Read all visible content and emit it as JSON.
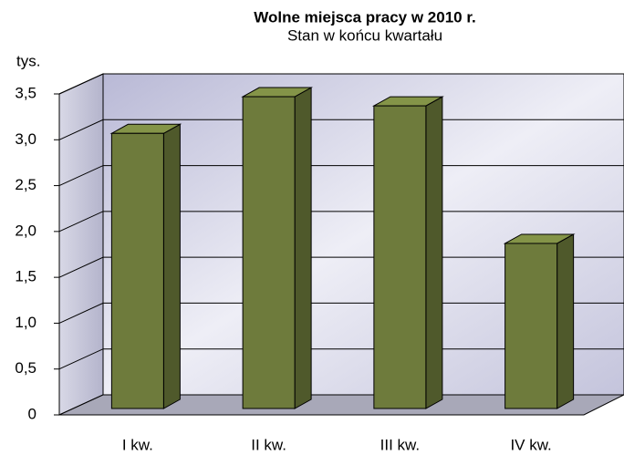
{
  "chart_data": {
    "type": "bar3d",
    "title": "Wolne miejsca pracy w 2010 r.",
    "subtitle": "Stan w końcu kwartału",
    "y_label": "tys.",
    "categories": [
      "I kw.",
      "II kw.",
      "III kw.",
      "IV kw."
    ],
    "values": [
      3.0,
      3.4,
      3.3,
      1.8
    ],
    "color": "#6e7b3c",
    "ylim": [
      0,
      3.5
    ],
    "yticks": [
      0,
      {
        "value": 0.5,
        "label": "0,5"
      },
      {
        "value": 1.0,
        "label": "1,0"
      },
      {
        "value": 1.5,
        "label": "1,5"
      },
      {
        "value": 2.0,
        "label": "2,0"
      },
      {
        "value": 2.5,
        "label": "2,5"
      },
      {
        "value": 3.0,
        "label": "3,0"
      },
      {
        "value": 3.5,
        "label": "3,5"
      }
    ],
    "grid": true
  }
}
